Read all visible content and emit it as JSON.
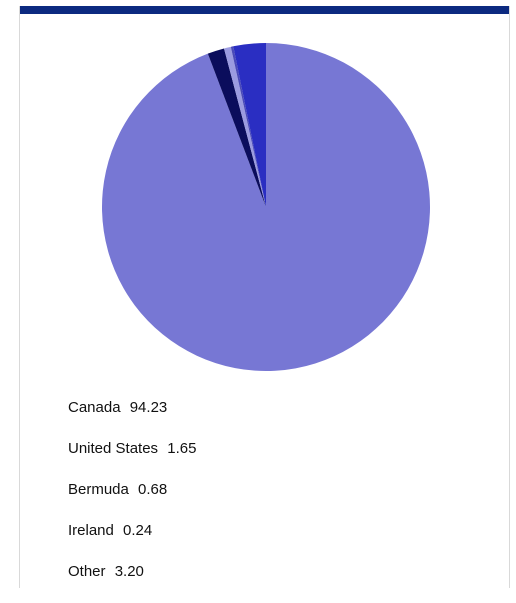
{
  "chart_data": {
    "type": "pie",
    "start_angle_deg": 0,
    "direction": "clockwise",
    "slices": [
      {
        "label": "Canada",
        "value": "94.23",
        "color": "#7777d4"
      },
      {
        "label": "United States",
        "value": "1.65",
        "color": "#0b0d5c"
      },
      {
        "label": "Bermuda",
        "value": "0.68",
        "color": "#9b9be0"
      },
      {
        "label": "Ireland",
        "value": "0.24",
        "color": "#4a4ab8"
      },
      {
        "label": "Other",
        "value": "3.20",
        "color": "#2a2ec2"
      }
    ]
  },
  "accent_bar_color": "#0c2a80"
}
